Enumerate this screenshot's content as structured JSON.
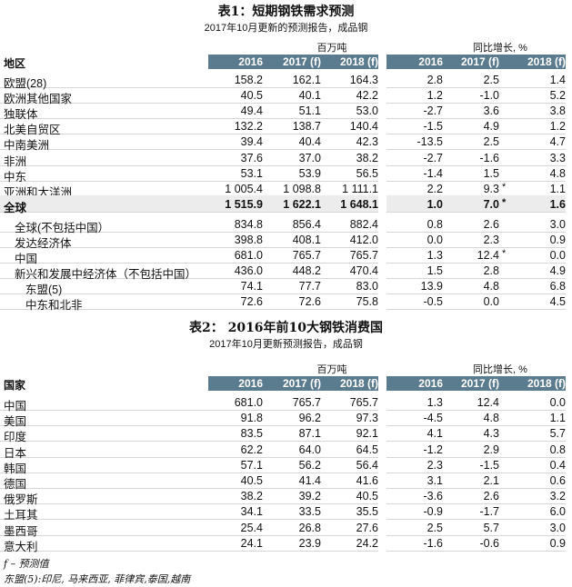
{
  "table1": {
    "title": "表1：短期钢铁需求预测",
    "subtitle": "2017年10月更新的预测报告，成品钢",
    "unit_left": "百万吨",
    "unit_right": "同比增长, %",
    "row_header": "地区",
    "columns": [
      "2016",
      "2017 (f)",
      "2018 (f)"
    ],
    "header_color": "#5b7b8f",
    "rows": [
      {
        "name": "欧盟(28)",
        "values": [
          "158.2",
          "162.1",
          "164.3"
        ],
        "growth": [
          "2.8",
          "2.5",
          "1.4"
        ],
        "indent": 0
      },
      {
        "name": "欧洲其他国家",
        "values": [
          "40.5",
          "40.1",
          "42.2"
        ],
        "growth": [
          "1.2",
          "-1.0",
          "5.2"
        ],
        "indent": 0
      },
      {
        "name": "独联体",
        "values": [
          "49.4",
          "51.1",
          "53.0"
        ],
        "growth": [
          "-2.7",
          "3.6",
          "3.8"
        ],
        "indent": 0
      },
      {
        "name": "北美自贸区",
        "values": [
          "132.2",
          "138.7",
          "140.4"
        ],
        "growth": [
          "-1.5",
          "4.9",
          "1.2"
        ],
        "indent": 0
      },
      {
        "name": "中南美洲",
        "values": [
          "39.4",
          "40.4",
          "42.3"
        ],
        "growth": [
          "-13.5",
          "2.5",
          "4.7"
        ],
        "indent": 0
      },
      {
        "name": "非洲",
        "values": [
          "37.6",
          "37.0",
          "38.2"
        ],
        "growth": [
          "-2.7",
          "-1.6",
          "3.3"
        ],
        "indent": 0
      },
      {
        "name": "中东",
        "values": [
          "53.1",
          "53.9",
          "56.5"
        ],
        "growth": [
          "-1.4",
          "1.5",
          "4.8"
        ],
        "indent": 0
      },
      {
        "name": "亚洲和大洋洲",
        "values": [
          "1 005.4",
          "1 098.8",
          "1 111.1"
        ],
        "growth": [
          "2.2",
          "9.3",
          "1.1"
        ],
        "star": "*",
        "indent": 0
      },
      {
        "name": "全球",
        "values": [
          "1 515.9",
          "1 622.1",
          "1 648.1"
        ],
        "growth": [
          "1.0",
          "7.0",
          "1.6"
        ],
        "star": "*",
        "indent": 0,
        "total": true
      },
      {
        "name": "全球(不包括中国）",
        "values": [
          "834.8",
          "856.4",
          "882.4"
        ],
        "growth": [
          "0.8",
          "2.6",
          "3.0"
        ],
        "indent": 1
      },
      {
        "name": "发达经济体",
        "values": [
          "398.8",
          "408.1",
          "412.0"
        ],
        "growth": [
          "0.0",
          "2.3",
          "0.9"
        ],
        "indent": 1
      },
      {
        "name": "中国",
        "values": [
          "681.0",
          "765.7",
          "765.7"
        ],
        "growth": [
          "1.3",
          "12.4",
          "0.0"
        ],
        "star": "*",
        "indent": 1
      },
      {
        "name": "新兴和发展中经济体（不包括中国）",
        "values": [
          "436.0",
          "448.2",
          "470.4"
        ],
        "growth": [
          "1.5",
          "2.8",
          "4.9"
        ],
        "indent": 1
      },
      {
        "name": "东盟(5)",
        "values": [
          "74.1",
          "77.7",
          "83.0"
        ],
        "growth": [
          "13.9",
          "4.8",
          "6.8"
        ],
        "indent": 2
      },
      {
        "name": "中东和北非",
        "values": [
          "72.6",
          "72.6",
          "75.8"
        ],
        "growth": [
          "-0.5",
          "0.0",
          "4.5"
        ],
        "indent": 2
      }
    ]
  },
  "table2": {
    "title": "表2： 2016年前10大钢铁消费国",
    "subtitle": "2017年10月更新预测报告，成品钢",
    "unit_left": "百万吨",
    "unit_right": "同比增长, %",
    "row_header": "国家",
    "columns": [
      "2016",
      "2017 (f)",
      "2018 (f)"
    ],
    "rows": [
      {
        "name": "中国",
        "values": [
          "681.0",
          "765.7",
          "765.7"
        ],
        "growth": [
          "1.3",
          "12.4",
          "0.0"
        ]
      },
      {
        "name": "美国",
        "values": [
          "91.8",
          "96.2",
          "97.3"
        ],
        "growth": [
          "-4.5",
          "4.8",
          "1.1"
        ]
      },
      {
        "name": "印度",
        "values": [
          "83.5",
          "87.1",
          "92.1"
        ],
        "growth": [
          "4.1",
          "4.3",
          "5.7"
        ]
      },
      {
        "name": "日本",
        "values": [
          "62.2",
          "64.0",
          "64.5"
        ],
        "growth": [
          "-1.2",
          "2.9",
          "0.8"
        ]
      },
      {
        "name": "韩国",
        "values": [
          "57.1",
          "56.2",
          "56.4"
        ],
        "growth": [
          "2.3",
          "-1.5",
          "0.4"
        ]
      },
      {
        "name": "德国",
        "values": [
          "40.5",
          "41.4",
          "41.6"
        ],
        "growth": [
          "3.1",
          "2.1",
          "0.6"
        ]
      },
      {
        "name": "俄罗斯",
        "values": [
          "38.2",
          "39.2",
          "40.5"
        ],
        "growth": [
          "-3.6",
          "2.6",
          "3.2"
        ]
      },
      {
        "name": "土耳其",
        "values": [
          "34.1",
          "33.5",
          "35.5"
        ],
        "growth": [
          "-0.9",
          "-1.7",
          "6.0"
        ]
      },
      {
        "name": "墨西哥",
        "values": [
          "25.4",
          "26.8",
          "27.6"
        ],
        "growth": [
          "2.5",
          "5.7",
          "3.0"
        ]
      },
      {
        "name": "意大利",
        "values": [
          "24.1",
          "23.9",
          "24.2"
        ],
        "growth": [
          "-1.6",
          "-0.6",
          "0.9"
        ]
      }
    ]
  },
  "footnotes": [
    "f – 预测值",
    "东盟(5):印尼, 马来西亚, 菲律宾,泰国,越南"
  ]
}
